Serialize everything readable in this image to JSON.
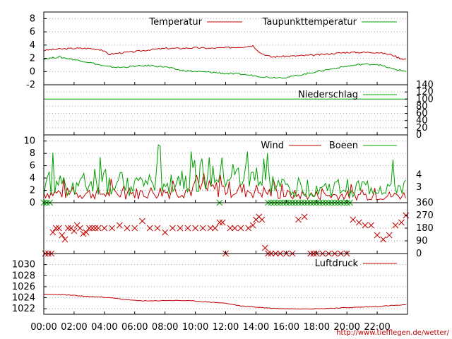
{
  "colors": {
    "red": "#c00000",
    "green": "#00a000",
    "grid": "#a0a0a0",
    "frame": "#000000"
  },
  "source_url": "http://www.tiefflegen.de/wetter/",
  "x_axis": {
    "ticks": [
      "00:00",
      "02:00",
      "04:00",
      "06:00",
      "08:00",
      "10:00",
      "12:00",
      "14:00",
      "16:00",
      "18:00",
      "20:00",
      "22:00"
    ],
    "tick_hours": [
      0,
      2,
      4,
      6,
      8,
      10,
      12,
      14,
      16,
      18,
      20,
      22
    ],
    "range_hours": [
      0,
      24
    ]
  },
  "chart_data": [
    {
      "type": "line",
      "panel": "temperature",
      "ylim": [
        -2,
        9
      ],
      "yticks": [
        "8",
        "6",
        "4",
        "2",
        "0",
        "-2"
      ],
      "ytick_values": [
        8,
        6,
        4,
        2,
        0,
        -2
      ],
      "grid": true,
      "legend": "top-right",
      "series": [
        {
          "name": "Temperatur",
          "color": "#c00000",
          "x": [
            0,
            1,
            2,
            3,
            3.8,
            4.3,
            5,
            6,
            7,
            8,
            9,
            10,
            11,
            12,
            13,
            13.8,
            14.3,
            15,
            16,
            17,
            18,
            19,
            20,
            21,
            22,
            23,
            23.5,
            24
          ],
          "y": [
            3.2,
            3.4,
            3.5,
            3.5,
            3.3,
            2.6,
            2.8,
            3.0,
            3.3,
            3.5,
            3.5,
            3.6,
            3.5,
            3.6,
            3.7,
            3.9,
            2.8,
            2.2,
            2.3,
            2.4,
            2.5,
            2.7,
            2.9,
            2.9,
            2.9,
            2.5,
            2.0,
            1.8
          ]
        },
        {
          "name": "Taupunkttemperatur",
          "color": "#00a000",
          "x": [
            0,
            1,
            2,
            3,
            4,
            5,
            6,
            7,
            8,
            9,
            10,
            11,
            12,
            13,
            13.8,
            14.5,
            15,
            16,
            17,
            18,
            19,
            20,
            21,
            22,
            23,
            24
          ],
          "y": [
            1.9,
            2.2,
            1.8,
            1.4,
            0.8,
            0.6,
            0.8,
            0.9,
            0.7,
            0.2,
            0.0,
            -0.1,
            -0.3,
            -0.4,
            -0.6,
            -0.8,
            -0.9,
            -0.9,
            -0.5,
            0.0,
            0.4,
            0.8,
            1.1,
            1.1,
            0.4,
            0.0
          ]
        }
      ]
    },
    {
      "type": "line",
      "panel": "precipitation",
      "ylim": [
        0,
        140
      ],
      "yticks_right": [
        "140",
        "120",
        "100",
        "80",
        "60",
        "40",
        "20",
        "0"
      ],
      "ytick_values": [
        140,
        120,
        100,
        80,
        60,
        40,
        20,
        0
      ],
      "grid": true,
      "legend": "top-right",
      "series": [
        {
          "name": "Niederschlag",
          "color": "#00a000",
          "x": [
            0,
            24
          ],
          "y": [
            100,
            100
          ]
        }
      ]
    },
    {
      "type": "line",
      "panel": "wind",
      "ylim": [
        0,
        11
      ],
      "yticks": [
        "10",
        "8",
        "6",
        "4",
        "2",
        "0"
      ],
      "ytick_values": [
        10,
        8,
        6,
        4,
        2,
        0
      ],
      "yticks_right": [
        "4",
        "3"
      ],
      "ytick_right_values": [
        4.5,
        2.5
      ],
      "grid": true,
      "legend": "top-right",
      "series": [
        {
          "name": "Wind",
          "color": "#c00000",
          "x": [
            0,
            2,
            4,
            6,
            8,
            10,
            12,
            14,
            16,
            18,
            20,
            22,
            24
          ],
          "y": [
            1.6,
            1.5,
            1.5,
            1.5,
            1.8,
            2.2,
            2.2,
            1.9,
            1.3,
            1.2,
            1.2,
            1.1,
            1.2
          ]
        },
        {
          "name": "Boeen",
          "color": "#00a000",
          "x": [
            0,
            2,
            4,
            6,
            8,
            10,
            12,
            14,
            16,
            18,
            20,
            22,
            24
          ],
          "y": [
            3.2,
            3.0,
            3.0,
            3.0,
            3.6,
            4.5,
            4.5,
            3.6,
            2.5,
            2.4,
            2.4,
            2.5,
            2.6
          ]
        }
      ]
    },
    {
      "type": "scatter",
      "panel": "wind_direction",
      "ylim": [
        0,
        360
      ],
      "yticks_right": [
        "360",
        "270",
        "180",
        "90",
        "0"
      ],
      "ytick_values": [
        360,
        270,
        180,
        90,
        0
      ],
      "grid": true,
      "series": [
        {
          "name": "",
          "color": "#c00000",
          "x": [
            0.1,
            0.3,
            0.5,
            0.6,
            0.8,
            1.0,
            1.2,
            1.4,
            1.6,
            1.8,
            2.0,
            2.2,
            2.4,
            2.6,
            2.8,
            3.0,
            3.2,
            3.4,
            3.6,
            4.0,
            4.5,
            5.0,
            5.5,
            6.0,
            6.5,
            7.0,
            7.5,
            8.0,
            8.5,
            9.0,
            9.5,
            10.0,
            10.5,
            11.0,
            11.3,
            11.6,
            11.8,
            12.0,
            12.3,
            12.6,
            13.0,
            13.5,
            13.8,
            14.0,
            14.2,
            14.4,
            14.6,
            14.8,
            15.0,
            15.3,
            15.6,
            16.0,
            16.4,
            16.8,
            17.2,
            17.6,
            17.8,
            18.0,
            18.4,
            18.8,
            19.2,
            19.6,
            20.0,
            20.4,
            20.8,
            21.2,
            21.6,
            22.0,
            22.4,
            22.8,
            23.2,
            23.6,
            23.9
          ],
          "y": [
            0,
            0,
            0,
            150,
            180,
            180,
            130,
            100,
            180,
            180,
            160,
            200,
            180,
            140,
            150,
            180,
            180,
            180,
            180,
            180,
            180,
            200,
            180,
            180,
            230,
            180,
            180,
            150,
            180,
            180,
            180,
            180,
            180,
            180,
            180,
            220,
            220,
            0,
            180,
            180,
            180,
            180,
            200,
            240,
            260,
            240,
            40,
            0,
            0,
            0,
            0,
            0,
            0,
            240,
            260,
            0,
            0,
            0,
            0,
            0,
            0,
            0,
            0,
            240,
            220,
            200,
            200,
            130,
            100,
            130,
            200,
            220,
            270
          ]
        },
        {
          "name": "",
          "color": "#00a000",
          "x": [
            0.0,
            0.2,
            0.4,
            11.6,
            14.8,
            15.0,
            15.2,
            15.4,
            15.6,
            15.8,
            16.0,
            16.2,
            16.4,
            16.6,
            16.8,
            17.0,
            17.2,
            17.4,
            17.6,
            17.8,
            18.0,
            18.2,
            18.4,
            18.6,
            18.8,
            19.0,
            19.2,
            19.4,
            19.6,
            19.8,
            20.0,
            20.2
          ],
          "y": [
            360,
            360,
            360,
            360,
            360,
            360,
            360,
            360,
            360,
            360,
            360,
            360,
            360,
            360,
            360,
            360,
            360,
            360,
            360,
            360,
            360,
            360,
            360,
            360,
            360,
            360,
            360,
            360,
            360,
            360,
            360,
            360
          ]
        }
      ]
    },
    {
      "type": "line",
      "panel": "pressure",
      "ylim": [
        1021,
        1032
      ],
      "yticks": [
        "1030",
        "1028",
        "1026",
        "1024",
        "1022"
      ],
      "ytick_values": [
        1030,
        1028,
        1026,
        1024,
        1022
      ],
      "grid": true,
      "legend": "top-right",
      "series": [
        {
          "name": "Luftdruck",
          "color": "#c00000",
          "x": [
            0,
            1,
            2,
            3,
            4,
            5,
            6,
            7,
            8,
            9,
            10,
            11,
            12,
            13,
            14,
            15,
            16,
            17,
            18,
            19,
            20,
            21,
            22,
            23,
            24
          ],
          "y": [
            1024.6,
            1024.6,
            1024.4,
            1024.2,
            1024.1,
            1023.8,
            1023.5,
            1023.4,
            1023.5,
            1023.5,
            1023.4,
            1023.2,
            1023.0,
            1022.5,
            1022.3,
            1022.1,
            1022.0,
            1022.0,
            1022.0,
            1022.1,
            1022.2,
            1022.3,
            1022.4,
            1022.6,
            1022.7
          ]
        }
      ]
    }
  ]
}
